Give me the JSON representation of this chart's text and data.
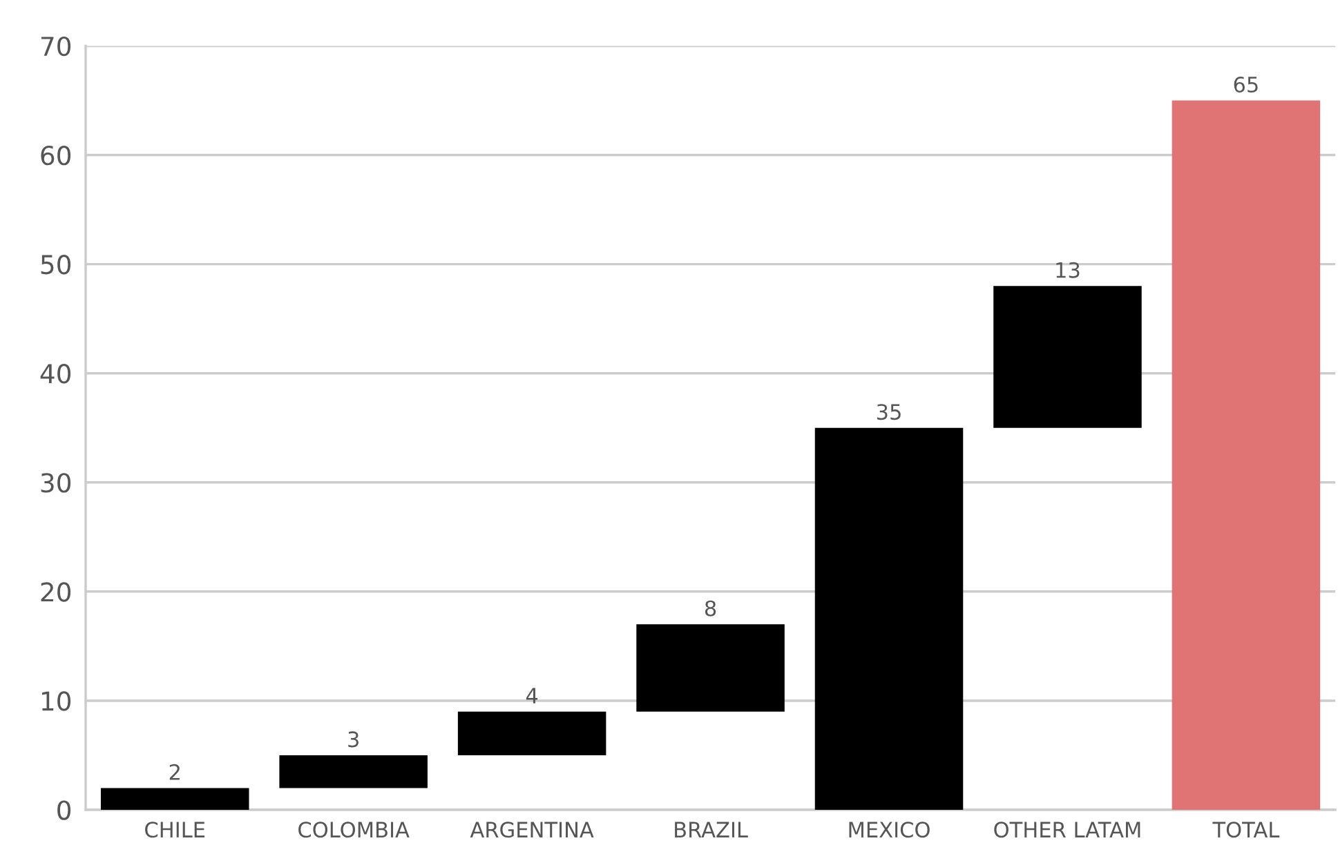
{
  "chart_data": {
    "type": "bar",
    "categories": [
      "CHILE",
      "COLOMBIA",
      "ARGENTINA",
      "BRAZIL",
      "MEXICO",
      "OTHER LATAM",
      "TOTAL"
    ],
    "values": [
      2,
      3,
      4,
      8,
      35,
      13,
      65
    ],
    "base": [
      0,
      2,
      5,
      9,
      0,
      35,
      0
    ],
    "colors": [
      "#000000",
      "#000000",
      "#000000",
      "#000000",
      "#000000",
      "#000000",
      "#e07474"
    ],
    "ylim": [
      0,
      70
    ],
    "yticks": [
      0,
      10,
      20,
      30,
      40,
      50,
      60,
      70
    ],
    "grid": "y",
    "data_labels": true
  }
}
